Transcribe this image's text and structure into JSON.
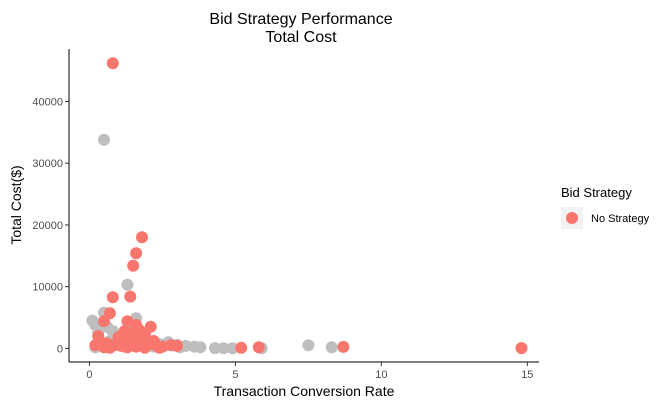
{
  "chart_data": {
    "type": "scatter",
    "title": "Bid Strategy Performance",
    "subtitle": "Total Cost",
    "xlabel": "Transaction Conversion Rate",
    "ylabel": "Total Cost($)",
    "xlim": [
      -0.7,
      15.4
    ],
    "ylim": [
      -2200,
      48500
    ],
    "xticks": [
      0,
      5,
      10,
      15
    ],
    "yticks": [
      0,
      10000,
      20000,
      30000,
      40000
    ],
    "grid": false,
    "legend": {
      "title": "Bid Strategy",
      "position": "right",
      "entries": [
        "No Strategy"
      ]
    },
    "colors": {
      "no_strategy": "#f8766d",
      "other": "#bebebe"
    },
    "series": [
      {
        "name": "",
        "color": "#bebebe",
        "points": [
          [
            0.1,
            4500
          ],
          [
            0.2,
            3800
          ],
          [
            0.3,
            2500
          ],
          [
            0.5,
            33800
          ],
          [
            0.5,
            5800
          ],
          [
            0.6,
            3500
          ],
          [
            0.8,
            2800
          ],
          [
            1.0,
            1500
          ],
          [
            1.3,
            10300
          ],
          [
            1.5,
            4000
          ],
          [
            1.6,
            4900
          ],
          [
            1.8,
            2200
          ],
          [
            2.0,
            1200
          ],
          [
            2.4,
            700
          ],
          [
            2.7,
            1000
          ],
          [
            3.0,
            600
          ],
          [
            3.3,
            400
          ],
          [
            3.6,
            300
          ],
          [
            3.8,
            200
          ],
          [
            4.3,
            50
          ],
          [
            4.6,
            20
          ],
          [
            4.9,
            30
          ],
          [
            5.9,
            30
          ],
          [
            7.5,
            500
          ],
          [
            8.3,
            200
          ],
          [
            0.2,
            200
          ],
          [
            0.4,
            600
          ],
          [
            0.9,
            500
          ],
          [
            1.2,
            300
          ],
          [
            1.7,
            800
          ],
          [
            2.2,
            300
          ],
          [
            2.6,
            500
          ],
          [
            3.1,
            200
          ],
          [
            0.7,
            1200
          ],
          [
            1.1,
            2000
          ]
        ]
      },
      {
        "name": "No Strategy",
        "color": "#f8766d",
        "points": [
          [
            0.8,
            46200
          ],
          [
            1.8,
            18000
          ],
          [
            1.6,
            15400
          ],
          [
            1.5,
            13400
          ],
          [
            0.8,
            8300
          ],
          [
            1.4,
            8400
          ],
          [
            0.7,
            5700
          ],
          [
            0.5,
            4400
          ],
          [
            1.3,
            4400
          ],
          [
            1.6,
            3800
          ],
          [
            2.1,
            3500
          ],
          [
            1.7,
            3000
          ],
          [
            1.2,
            2800
          ],
          [
            1.5,
            2500
          ],
          [
            1.9,
            2200
          ],
          [
            0.3,
            2000
          ],
          [
            1.0,
            1800
          ],
          [
            1.4,
            1500
          ],
          [
            2.2,
            1200
          ],
          [
            0.4,
            1000
          ],
          [
            0.6,
            800
          ],
          [
            0.9,
            600
          ],
          [
            1.1,
            400
          ],
          [
            1.6,
            300
          ],
          [
            1.8,
            1000
          ],
          [
            2.0,
            600
          ],
          [
            2.3,
            400
          ],
          [
            2.5,
            300
          ],
          [
            2.8,
            500
          ],
          [
            3.0,
            400
          ],
          [
            0.2,
            500
          ],
          [
            0.5,
            200
          ],
          [
            0.7,
            100
          ],
          [
            1.3,
            200
          ],
          [
            1.9,
            100
          ],
          [
            2.4,
            100
          ],
          [
            5.2,
            100
          ],
          [
            5.8,
            200
          ],
          [
            8.7,
            250
          ],
          [
            14.8,
            50
          ],
          [
            1.0,
            900
          ],
          [
            1.2,
            1300
          ],
          [
            1.5,
            700
          ],
          [
            1.7,
            1600
          ],
          [
            2.1,
            900
          ]
        ]
      }
    ]
  }
}
